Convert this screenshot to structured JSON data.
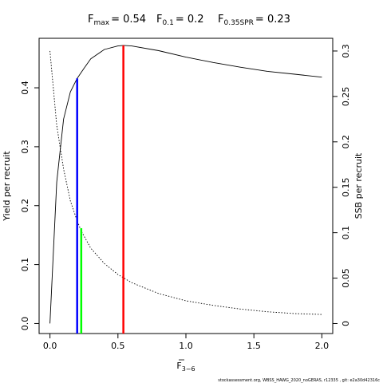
{
  "chart_data": {
    "type": "line",
    "title": {
      "fmax": {
        "base": "F",
        "sub": "max",
        "value": "= 0.54"
      },
      "f01": {
        "base": "F",
        "sub": "0.1",
        "value": "= 0.2"
      },
      "fspr": {
        "base": "F",
        "sub": "0.35SPR",
        "value": "= 0.23"
      }
    },
    "xlabel": {
      "base": "F",
      "sub": "3−6"
    },
    "ylabel_left": "Yield per recruit",
    "ylabel_right": "SSB per recruit",
    "xlim": [
      -0.08,
      2.08
    ],
    "ylim_left": [
      -0.017,
      0.484
    ],
    "ylim_right": [
      -0.011,
      0.314
    ],
    "x_ticks": [
      "0.0",
      "0.5",
      "1.0",
      "1.5",
      "2.0"
    ],
    "x_tick_values": [
      0,
      0.5,
      1.0,
      1.5,
      2.0
    ],
    "y_left_ticks": [
      "0.0",
      "0.1",
      "0.2",
      "0.3",
      "0.4"
    ],
    "y_left_tick_values": [
      0,
      0.1,
      0.2,
      0.3,
      0.4
    ],
    "y_right_ticks": [
      "0",
      "0.05",
      "0.1",
      "0.15",
      "0.2",
      "0.25",
      "0.3"
    ],
    "y_right_tick_values": [
      0,
      0.05,
      0.1,
      0.15,
      0.2,
      0.25,
      0.3
    ],
    "series": [
      {
        "axis": "left",
        "style": "solid",
        "x": [
          0,
          0.05,
          0.1,
          0.15,
          0.2,
          0.25,
          0.3,
          0.4,
          0.5,
          0.54,
          0.6,
          0.8,
          1.0,
          1.2,
          1.4,
          1.6,
          1.8,
          2.0
        ],
        "y": [
          0,
          0.24,
          0.347,
          0.393,
          0.416,
          0.433,
          0.449,
          0.465,
          0.471,
          0.472,
          0.471,
          0.463,
          0.452,
          0.443,
          0.435,
          0.428,
          0.423,
          0.418
        ]
      },
      {
        "axis": "right",
        "style": "dotted",
        "x": [
          0,
          0.05,
          0.1,
          0.15,
          0.2,
          0.23,
          0.3,
          0.4,
          0.5,
          0.6,
          0.8,
          1.0,
          1.2,
          1.4,
          1.6,
          1.8,
          2.0
        ],
        "y": [
          0.3,
          0.218,
          0.17,
          0.135,
          0.113,
          0.102,
          0.083,
          0.066,
          0.054,
          0.045,
          0.033,
          0.025,
          0.02,
          0.016,
          0.013,
          0.011,
          0.01
        ]
      }
    ],
    "reference_lines": [
      {
        "name": "F0.1",
        "x": 0.2,
        "axis": "left",
        "y": 0.416,
        "color": "#0000ff"
      },
      {
        "name": "F0.35SPR",
        "x": 0.23,
        "axis": "right",
        "y": 0.105,
        "color": "#00ff00"
      },
      {
        "name": "Fmax",
        "x": 0.54,
        "axis": "left",
        "y": 0.472,
        "color": "#ff0000"
      }
    ],
    "footnote": "stockassessment.org, WBSS_HAWG_2020_noGERAS, r12335 , git: e2a30d42316c"
  }
}
